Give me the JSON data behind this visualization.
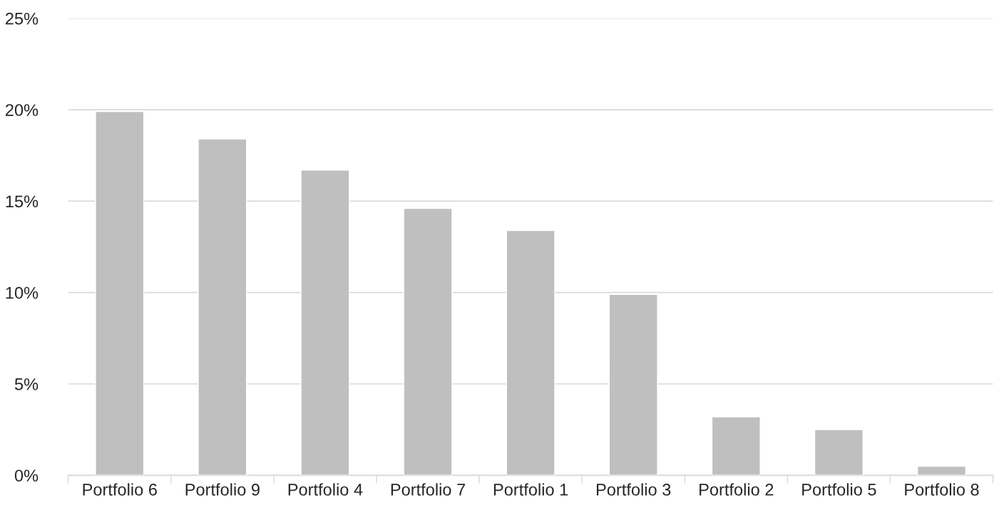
{
  "chart_data": {
    "type": "bar",
    "categories": [
      "Portfolio 6",
      "Portfolio 9",
      "Portfolio 4",
      "Portfolio 7",
      "Portfolio 1",
      "Portfolio 3",
      "Portfolio 2",
      "Portfolio 5",
      "Portfolio 8"
    ],
    "values": [
      19.9,
      18.4,
      16.7,
      14.6,
      13.4,
      9.9,
      3.2,
      2.5,
      0.5
    ],
    "color": "#bfbfbf",
    "ylim": [
      0,
      25
    ],
    "yticks": [
      {
        "value": 0,
        "label": "0%"
      },
      {
        "value": 5,
        "label": "5%"
      },
      {
        "value": 10,
        "label": "10%"
      },
      {
        "value": 15,
        "label": "15%"
      },
      {
        "value": 20,
        "label": "20%"
      },
      {
        "value": 25,
        "label": "25%"
      }
    ],
    "grid": "y"
  }
}
